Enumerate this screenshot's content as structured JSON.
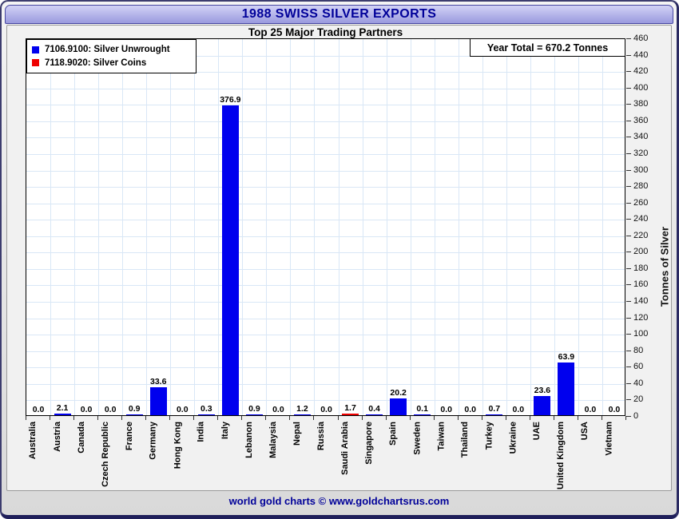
{
  "window": {
    "title": "1988 SWISS SILVER EXPORTS",
    "subtitle": "Top 25 Major Trading Partners",
    "footer": "world gold charts © www.goldchartsrus.com"
  },
  "colors": {
    "accent_navy": "#000099",
    "bar_blue": "#0000ee",
    "bar_red": "#ee0000",
    "gridline": "#d9e7f6"
  },
  "chart_data": {
    "type": "bar",
    "title": "1988 SWISS SILVER EXPORTS",
    "subtitle": "Top 25 Major Trading Partners",
    "annotation": "Year Total = 670.2 Tonnes",
    "ylabel": "Tonnes of Silver",
    "ylim": [
      0,
      460
    ],
    "ytick_step": 20,
    "grid": true,
    "legend_position": "top-left",
    "categories": [
      "Australia",
      "Austria",
      "Canada",
      "Czech Republic",
      "France",
      "Germany",
      "Hong Kong",
      "India",
      "Italy",
      "Lebanon",
      "Malaysia",
      "Nepal",
      "Russia",
      "Saudi Arabia",
      "Singapore",
      "Spain",
      "Sweden",
      "Taiwan",
      "Thailand",
      "Turkey",
      "Ukraine",
      "UAE",
      "United Kingdom",
      "USA",
      "Vietnam"
    ],
    "series": [
      {
        "name": "7106.9100: Silver Unwrought",
        "color": "#0000ee",
        "values": [
          0.0,
          2.1,
          0.0,
          0.0,
          0.9,
          33.6,
          0.0,
          0.3,
          376.9,
          0.9,
          0.0,
          1.2,
          0.0,
          0.0,
          0.4,
          20.2,
          0.1,
          0.0,
          0.0,
          0.7,
          0.0,
          23.6,
          63.9,
          0.0,
          0.0
        ]
      },
      {
        "name": "7118.9020: Silver Coins",
        "color": "#ee0000",
        "values": [
          0,
          0,
          0,
          0,
          0,
          0,
          0,
          0,
          0,
          0,
          0,
          0,
          0,
          1.7,
          0,
          0,
          0,
          0,
          0,
          0,
          0,
          0,
          0,
          0,
          0
        ]
      }
    ]
  }
}
